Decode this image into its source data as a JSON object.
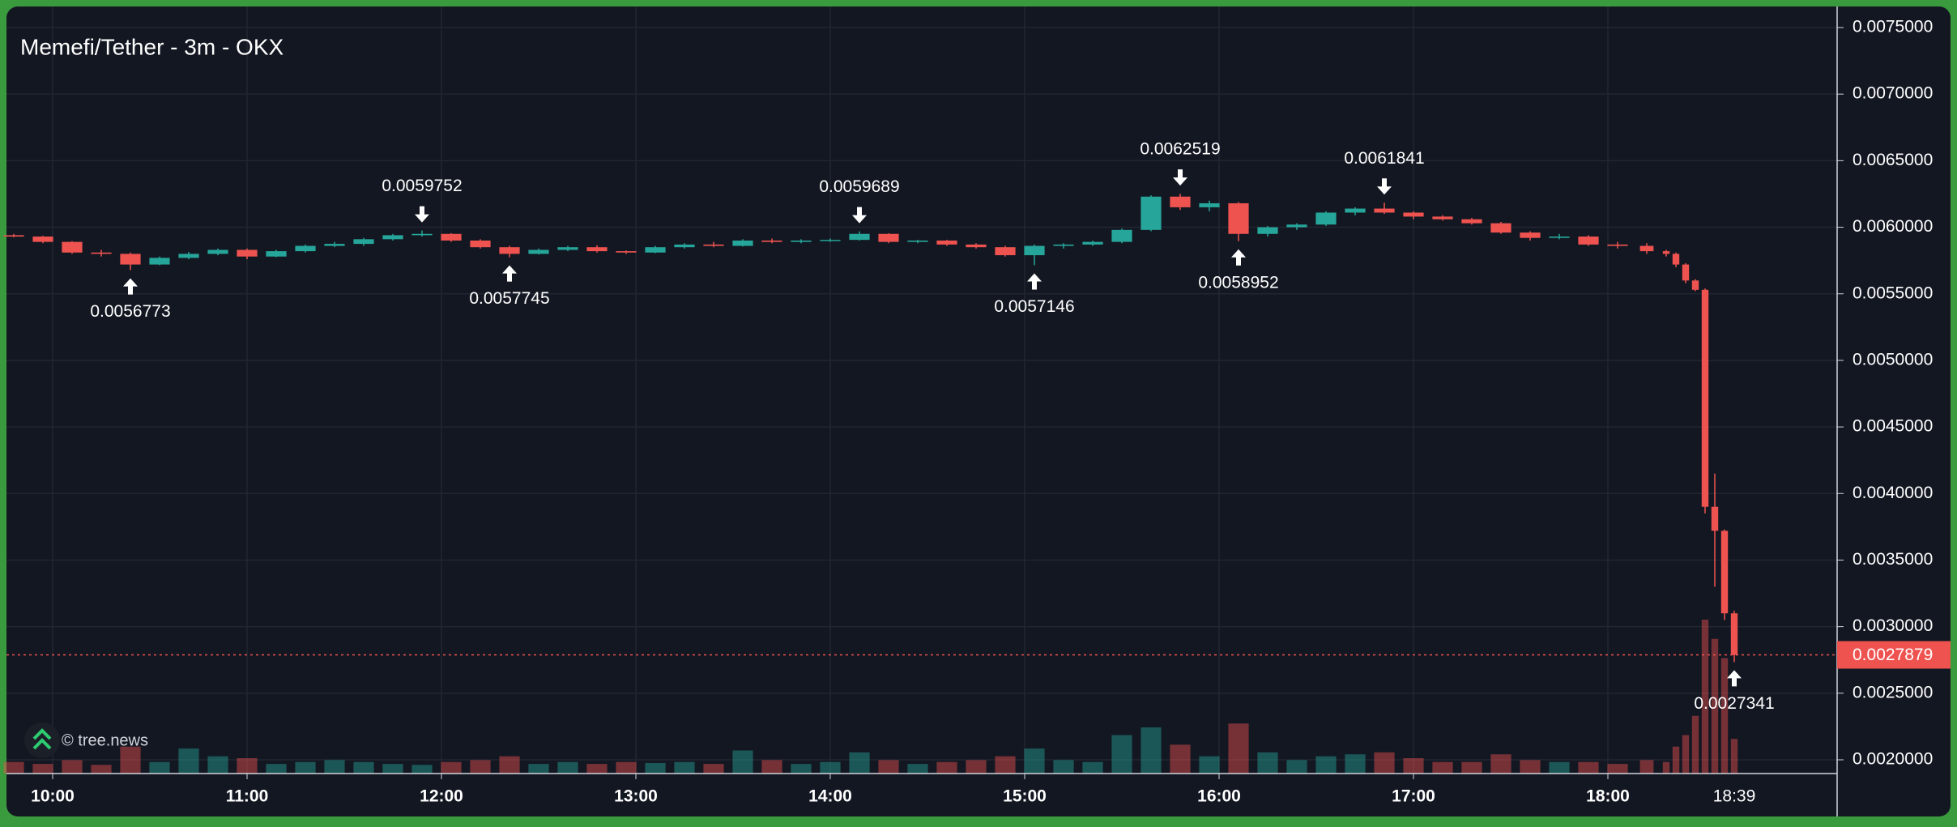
{
  "chart_data": {
    "type": "candlestick",
    "title": "Memefi/Tether - 3m - OKX",
    "watermark": "© tree.news",
    "x": [
      "09:48",
      "09:57",
      "10:06",
      "10:15",
      "10:24",
      "10:33",
      "10:42",
      "10:51",
      "11:00",
      "11:09",
      "11:18",
      "11:27",
      "11:36",
      "11:45",
      "11:54",
      "12:03",
      "12:12",
      "12:21",
      "12:30",
      "12:39",
      "12:48",
      "12:57",
      "13:06",
      "13:15",
      "13:24",
      "13:33",
      "13:42",
      "13:51",
      "14:00",
      "14:09",
      "14:18",
      "14:27",
      "14:36",
      "14:45",
      "14:54",
      "15:03",
      "15:12",
      "15:21",
      "15:30",
      "15:39",
      "15:48",
      "15:57",
      "16:06",
      "16:15",
      "16:24",
      "16:33",
      "16:42",
      "16:51",
      "17:00",
      "17:09",
      "17:18",
      "17:27",
      "17:36",
      "17:45",
      "17:54",
      "18:03",
      "18:12",
      "18:18",
      "18:21",
      "18:24",
      "18:27",
      "18:30",
      "18:33",
      "18:36",
      "18:39"
    ],
    "open": [
      0.00594,
      0.00593,
      0.00589,
      0.00581,
      0.0058,
      0.00572,
      0.00577,
      0.0058,
      0.00583,
      0.00578,
      0.00582,
      0.00586,
      0.005875,
      0.00591,
      0.00594,
      0.00595,
      0.0059,
      0.00585,
      0.0058,
      0.00583,
      0.00585,
      0.00582,
      0.00581,
      0.00585,
      0.00587,
      0.00586,
      0.0059,
      0.00589,
      0.0059,
      0.005905,
      0.00595,
      0.00589,
      0.0059,
      0.00587,
      0.00585,
      0.00579,
      0.00586,
      0.00587,
      0.00589,
      0.00598,
      0.00623,
      0.00615,
      0.00618,
      0.00595,
      0.006,
      0.00602,
      0.00611,
      0.00614,
      0.00611,
      0.00608,
      0.00606,
      0.00603,
      0.00596,
      0.00592,
      0.00593,
      0.00587,
      0.00586,
      0.00582,
      0.0058,
      0.00572,
      0.0056,
      0.00553,
      0.0039,
      0.00372,
      0.0031
    ],
    "high": [
      0.00595,
      0.005935,
      0.005895,
      0.00583,
      0.00581,
      0.00578,
      0.005815,
      0.00584,
      0.00584,
      0.00583,
      0.00587,
      0.00589,
      0.00592,
      0.00595,
      0.0059752,
      0.005955,
      0.00591,
      0.00586,
      0.00584,
      0.00586,
      0.005865,
      0.005825,
      0.00586,
      0.00588,
      0.00589,
      0.00591,
      0.005915,
      0.00591,
      0.005915,
      0.0059689,
      0.005955,
      0.005905,
      0.005905,
      0.00588,
      0.00586,
      0.00587,
      0.00588,
      0.0059,
      0.00599,
      0.00624,
      0.0062519,
      0.0062,
      0.00619,
      0.00601,
      0.00603,
      0.00612,
      0.00615,
      0.0061841,
      0.00612,
      0.00609,
      0.00607,
      0.00604,
      0.00597,
      0.00595,
      0.00594,
      0.00589,
      0.00588,
      0.00583,
      0.00581,
      0.00573,
      0.00561,
      0.00554,
      0.00415,
      0.00373,
      0.00312
    ],
    "low": [
      0.005925,
      0.00588,
      0.0058,
      0.00578,
      0.0056773,
      0.005715,
      0.00576,
      0.00579,
      0.00576,
      0.005775,
      0.00581,
      0.00585,
      0.00586,
      0.0059,
      0.00593,
      0.00589,
      0.00584,
      0.0057745,
      0.005795,
      0.00582,
      0.00581,
      0.0058,
      0.005805,
      0.00584,
      0.00585,
      0.005855,
      0.00588,
      0.00588,
      0.00589,
      0.0059,
      0.00588,
      0.00588,
      0.00586,
      0.00584,
      0.00578,
      0.0057146,
      0.00584,
      0.00586,
      0.00588,
      0.00597,
      0.00613,
      0.00612,
      0.0058952,
      0.00593,
      0.00598,
      0.00601,
      0.00609,
      0.0061,
      0.00606,
      0.00605,
      0.00602,
      0.00595,
      0.0059,
      0.00591,
      0.00586,
      0.00584,
      0.0058,
      0.00578,
      0.0057,
      0.00558,
      0.00552,
      0.00385,
      0.0033,
      0.00305,
      0.0027341
    ],
    "close": [
      0.00593,
      0.00589,
      0.00581,
      0.0058,
      0.00572,
      0.00577,
      0.0058,
      0.00583,
      0.00578,
      0.00582,
      0.00586,
      0.005875,
      0.00591,
      0.00594,
      0.00595,
      0.0059,
      0.00585,
      0.0058,
      0.00583,
      0.00585,
      0.00582,
      0.00581,
      0.00585,
      0.00587,
      0.00586,
      0.0059,
      0.00589,
      0.0059,
      0.005905,
      0.00595,
      0.00589,
      0.0059,
      0.00587,
      0.00585,
      0.00579,
      0.00586,
      0.00587,
      0.00589,
      0.00598,
      0.00623,
      0.00615,
      0.00618,
      0.00595,
      0.006,
      0.00602,
      0.00611,
      0.00614,
      0.00611,
      0.00608,
      0.00606,
      0.00603,
      0.00596,
      0.00592,
      0.00593,
      0.00587,
      0.00586,
      0.00582,
      0.0058,
      0.00572,
      0.0056,
      0.00553,
      0.0039,
      0.00372,
      0.0031,
      0.0027879
    ],
    "volume": [
      12,
      10,
      14,
      9,
      28,
      12,
      26,
      18,
      16,
      10,
      12,
      14,
      12,
      10,
      9,
      12,
      14,
      18,
      10,
      12,
      10,
      12,
      11,
      12,
      10,
      24,
      14,
      10,
      12,
      22,
      14,
      10,
      12,
      14,
      18,
      26,
      14,
      12,
      40,
      48,
      30,
      18,
      52,
      22,
      14,
      18,
      20,
      22,
      16,
      12,
      12,
      20,
      14,
      12,
      12,
      10,
      14,
      12,
      28,
      40,
      60,
      160,
      140,
      120,
      36
    ],
    "up_color": "#26a69a",
    "down_color": "#ef5350",
    "ylim": [
      0.00185,
      0.0077
    ],
    "yticks": [
      {
        "value": 0.002,
        "label": "0.0020000"
      },
      {
        "value": 0.0025,
        "label": "0.0025000"
      },
      {
        "value": 0.003,
        "label": "0.0030000"
      },
      {
        "value": 0.0035,
        "label": "0.0035000"
      },
      {
        "value": 0.004,
        "label": "0.0040000"
      },
      {
        "value": 0.0045,
        "label": "0.0045000"
      },
      {
        "value": 0.005,
        "label": "0.0050000"
      },
      {
        "value": 0.0055,
        "label": "0.0055000"
      },
      {
        "value": 0.006,
        "label": "0.0060000"
      },
      {
        "value": 0.0065,
        "label": "0.0065000"
      },
      {
        "value": 0.007,
        "label": "0.0070000"
      },
      {
        "value": 0.0075,
        "label": "0.0075000"
      }
    ],
    "xticks": [
      "10:00",
      "11:00",
      "12:00",
      "13:00",
      "14:00",
      "15:00",
      "16:00",
      "17:00",
      "18:00"
    ],
    "last_price": 0.0027879,
    "grid": true,
    "annotations": [
      {
        "x": "10:24",
        "value": 0.0056773,
        "kind": "low"
      },
      {
        "x": "11:54",
        "value": 0.0059752,
        "kind": "high"
      },
      {
        "x": "12:21",
        "value": 0.0057745,
        "kind": "low"
      },
      {
        "x": "14:09",
        "value": 0.0059689,
        "kind": "high"
      },
      {
        "x": "15:03",
        "value": 0.0057146,
        "kind": "low"
      },
      {
        "x": "15:48",
        "value": 0.0062519,
        "kind": "high"
      },
      {
        "x": "16:06",
        "value": 0.0058952,
        "kind": "low"
      },
      {
        "x": "16:51",
        "value": 0.0061841,
        "kind": "high"
      },
      {
        "x": "18:39",
        "value": 0.0027341,
        "kind": "low"
      }
    ]
  }
}
